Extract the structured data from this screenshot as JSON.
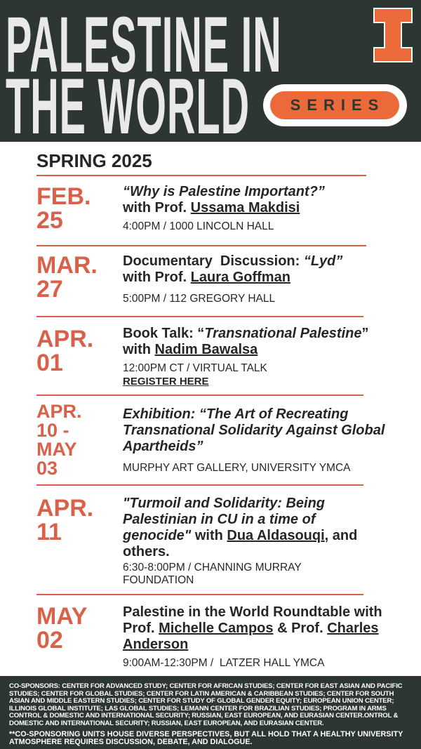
{
  "header": {
    "title_line1": "PALESTINE IN",
    "title_line2": "THE WORLD",
    "series_label": "SERIES",
    "logo_letter": "I"
  },
  "colors": {
    "dark_green": "#2d3630",
    "orange": "#ec6a3a",
    "date_red": "#d9614a"
  },
  "season": "SPRING 2025",
  "events": [
    {
      "date": [
        "FEB.",
        "25"
      ],
      "title_italic": "“Why is Palestine Important?”",
      "with": "with Prof. ",
      "speaker": "Ussama Makdisi",
      "info": "4:00PM / 1000 LINCOLN HALL"
    },
    {
      "date": [
        "MAR.",
        "27"
      ],
      "title_prefix": "Documentary  Discussion: ",
      "title_italic": "“Lyd”",
      "with": "with Prof. ",
      "speaker": "Laura Goffman",
      "info": "5:00PM / 112 GREGORY HALL"
    },
    {
      "date": [
        "APR.",
        "01"
      ],
      "title_prefix": "Book Talk: “",
      "title_italic": "Transnational Palestine",
      "title_suffix": "”",
      "with": "with ",
      "speaker": "Nadim Bawalsa",
      "info": "12:00PM CT / VIRTUAL TALK",
      "link": "REGISTER HERE"
    },
    {
      "date": [
        "APR.",
        "10 -",
        "MAY",
        "03"
      ],
      "title_italic": "Exhibition: “The Art of Recreating Transnational Solidarity Against Global Apartheids”",
      "info": "MURPHY ART GALLERY, UNIVERSITY YMCA"
    },
    {
      "date": [
        "APR.",
        "11"
      ],
      "title_italic": "\"Turmoil and Solidarity: Being Palestinian in CU in a time of genocide\"",
      "with": " with ",
      "speaker": "Dua Aldasouqi",
      "title_suffix": ", and others.",
      "info": "6:30-8:00PM / CHANNING MURRAY FOUNDATION"
    },
    {
      "date": [
        "MAY",
        "02"
      ],
      "title_prefix": "Palestine in the World Roundtable with Prof. ",
      "speaker": "Michelle Campos",
      "mid": " & Prof. ",
      "speaker2": "Charles Anderson",
      "info": "9:00AM-12:30PM /  LATZER HALL YMCA"
    }
  ],
  "footer": {
    "sponsors": "CO-SPONSORS: CENTER FOR ADVANCED STUDY; CENTER FOR AFRICAN STUDIES; CENTER FOR EAST ASIAN AND PACIFIC STUDIES; CENTER FOR GLOBAL STUDIES; CENTER FOR LATIN AMERICAN & CARIBBEAN STUDIES; CENTER FOR SOUTH ASIAN AND MIDDLE EASTERN STUDIES; CENTER FOR STUDY OF GLOBAL GENDER EQUITY; EUROPEAN UNION CENTER; ILLINOIS GLOBAL INSTITUTE; LAS GLOBAL STUDIES; LEMANN CENTER FOR BRAZILIAN STUDIES; PROGRAM IN ARMS CONTROL & DOMESTIC AND INTERNATIONAL SECURITY; RUSSIAN, EAST EUROPEAN, AND EURASIAN CENTER.ONTROL & DOMESTIC AND INTERNATIONAL SECURITY; RUSSIAN, EAST EUROPEAN, AND EURASIAN CENTER.",
    "disclaimer": "**CO-SPONSORING UNITS HOUSE DIVERSE PERSPECTIVES, BUT ALL HOLD THAT A HEALTHY UNIVERSITY ATMOSPHERE REQUIRES DISCUSSION, DEBATE, AND DIALOGUE."
  }
}
